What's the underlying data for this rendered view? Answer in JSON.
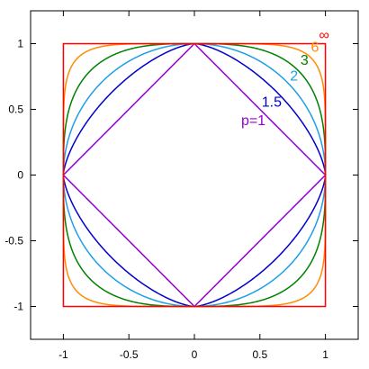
{
  "chart_data": {
    "type": "line",
    "title": "",
    "xlabel": "",
    "ylabel": "",
    "xlim": [
      -1.25,
      1.25
    ],
    "ylim": [
      -1.25,
      1.25
    ],
    "x_ticks": [
      -1,
      -0.5,
      0,
      0.5,
      1
    ],
    "y_ticks": [
      -1,
      -0.5,
      0,
      0.5,
      1
    ],
    "x_tick_labels": [
      "-1",
      "-0.5",
      "0",
      "0.5",
      "1"
    ],
    "y_tick_labels": [
      "-1",
      "-0.5",
      "0",
      "0.5",
      "1"
    ],
    "grid": false,
    "legend": "none",
    "series": [
      {
        "name": "p=1",
        "p": 1,
        "color": "#9400d3",
        "label_at": [
          0.45,
          0.38
        ]
      },
      {
        "name": "1.5",
        "p": 1.5,
        "color": "#0000cd",
        "label_at": [
          0.59,
          0.52
        ]
      },
      {
        "name": "2",
        "p": 2,
        "color": "#1e9fe8",
        "label_at": [
          0.76,
          0.72
        ]
      },
      {
        "name": "3",
        "p": 3,
        "color": "#008000",
        "label_at": [
          0.84,
          0.84
        ]
      },
      {
        "name": "6",
        "p": 6,
        "color": "#ff8c00",
        "label_at": [
          0.92,
          0.94
        ]
      },
      {
        "name": "∞",
        "p": "inf",
        "color": "#ff0000",
        "label_at": [
          0.99,
          1.03
        ]
      }
    ]
  }
}
